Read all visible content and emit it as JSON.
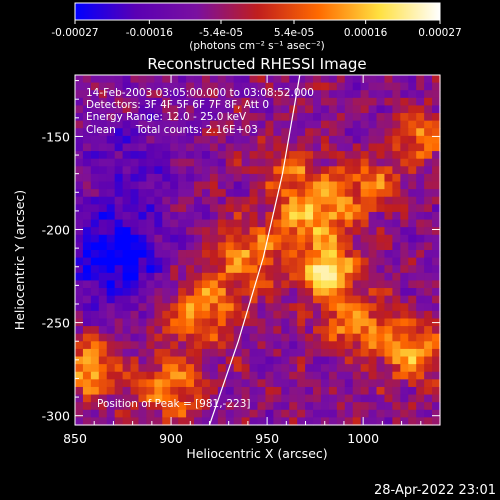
{
  "chart_data": {
    "type": "heatmap",
    "title": "Reconstructed RHESSI Image",
    "xlabel": "Heliocentric X (arcsec)",
    "ylabel": "Heliocentric Y (arcsec)",
    "xlim": [
      850,
      1040
    ],
    "ylim": [
      -305,
      -117
    ],
    "x_ticks": [
      850,
      900,
      950,
      1000
    ],
    "x_tick_labels": [
      "850",
      "900",
      "950",
      "1000"
    ],
    "y_ticks": [
      -150,
      -200,
      -250,
      -300
    ],
    "y_tick_labels": [
      "-150",
      "-200",
      "-250",
      "-300"
    ],
    "colorbar": {
      "range": [
        -0.00027,
        0.00027
      ],
      "ticks": [
        -0.00027,
        -0.00016,
        -5.4e-05,
        5.4e-05,
        0.00016,
        0.00027
      ],
      "tick_labels": [
        "-0.00027",
        "-0.00016",
        "-5.4e-05",
        "5.4e-05",
        "0.00016",
        "0.00027"
      ],
      "unit_label": "(photons cm⁻² s⁻¹ asec⁻²)",
      "colors": [
        "#0000ff",
        "#5a00b4",
        "#7a10a0",
        "#c01e1e",
        "#ff6a00",
        "#ffe040",
        "#ffffff"
      ]
    },
    "annotations": [
      "14-Feb-2003 03:05:00.000 to 03:08:52.000",
      "Detectors: 3F 4F 5F 6F 7F 8F, Att 0",
      "Energy Range: 12.0 - 25.0 keV",
      "Clean      Total counts: 2.16E+03"
    ],
    "peak_label": "Position of Peak = [981,-223]",
    "peak": [
      981,
      -223
    ],
    "limb_curve": [
      [
        920,
        -305
      ],
      [
        935,
        -260
      ],
      [
        948,
        -215
      ],
      [
        958,
        -170
      ],
      [
        967,
        -117
      ]
    ],
    "sources": [
      {
        "x": 981,
        "y": -223,
        "amp": 1.0,
        "sigma": 9
      },
      {
        "x": 975,
        "y": -190,
        "amp": 0.7,
        "sigma": 14
      },
      {
        "x": 995,
        "y": -250,
        "amp": 0.55,
        "sigma": 12
      },
      {
        "x": 940,
        "y": -215,
        "amp": 0.5,
        "sigma": 14
      },
      {
        "x": 915,
        "y": -245,
        "amp": 0.55,
        "sigma": 14
      },
      {
        "x": 1025,
        "y": -265,
        "amp": 0.6,
        "sigma": 12
      },
      {
        "x": 1030,
        "y": -150,
        "amp": 0.55,
        "sigma": 10
      },
      {
        "x": 1005,
        "y": -175,
        "amp": 0.45,
        "sigma": 11
      },
      {
        "x": 858,
        "y": -275,
        "amp": 0.7,
        "sigma": 10
      },
      {
        "x": 900,
        "y": -285,
        "amp": 0.55,
        "sigma": 12
      },
      {
        "x": 960,
        "y": -165,
        "amp": 0.35,
        "sigma": 10
      },
      {
        "x": 870,
        "y": -215,
        "amp": -0.6,
        "sigma": 18
      },
      {
        "x": 880,
        "y": -165,
        "amp": -0.25,
        "sigma": 20
      }
    ]
  },
  "footer": {
    "timestamp": "28-Apr-2022 23:01"
  }
}
